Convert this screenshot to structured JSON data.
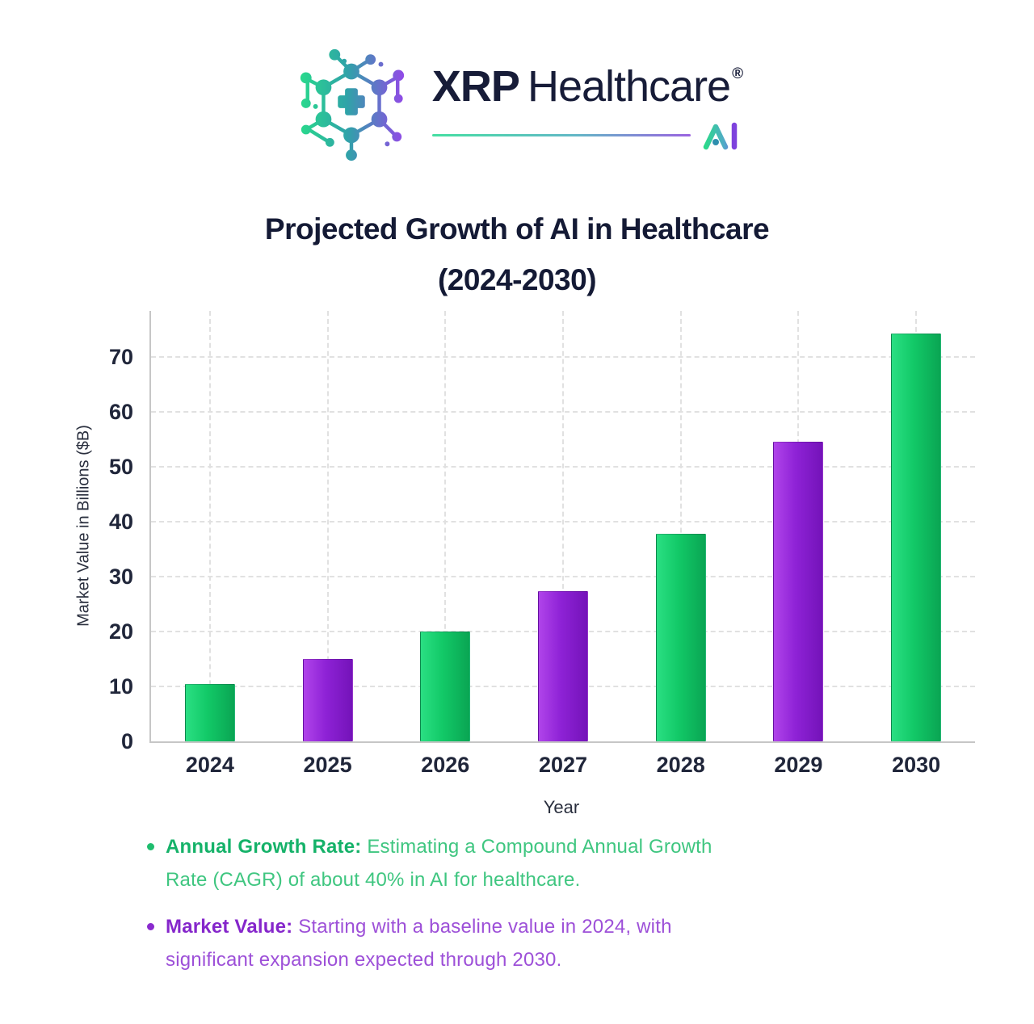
{
  "brand": {
    "name_bold": "XRP",
    "name_rest": "Healthcare",
    "registered_mark": "®",
    "sub_brand": "AI"
  },
  "title": {
    "line1": "Projected Growth of AI in Healthcare",
    "line2": "(2024-2030)"
  },
  "chart_data": {
    "type": "bar",
    "title": "Projected Growth of AI in Healthcare (2024-2030)",
    "categories": [
      "2024",
      "2025",
      "2026",
      "2027",
      "2028",
      "2029",
      "2030"
    ],
    "values": [
      10.5,
      15,
      20,
      27.3,
      37.8,
      54.5,
      74.3
    ],
    "bar_colors": [
      "green",
      "purple",
      "green",
      "purple",
      "green",
      "purple",
      "green"
    ],
    "colors": {
      "green": [
        "#2adf83",
        "#12c967",
        "#0aa553"
      ],
      "purple": [
        "#b044ea",
        "#8e22d6",
        "#7413b9"
      ]
    },
    "xlabel": "Year",
    "ylabel": "Market Value in Billions ($B)",
    "ylim": [
      0,
      78.4
    ],
    "yticks": [
      0,
      10,
      20,
      30,
      40,
      50,
      60,
      70
    ],
    "grid": true,
    "legend": false
  },
  "notes": [
    {
      "label": "Annual Growth Rate:",
      "line1": "Estimating a Compound Annual Growth",
      "line2": "Rate (CAGR) of about 40% in AI for healthcare.",
      "color": "#22c072"
    },
    {
      "label": "Market Value:",
      "line1": "Starting with a baseline value in 2024, with",
      "line2": "significant expansion expected through 2030.",
      "color": "#9133d4"
    }
  ]
}
